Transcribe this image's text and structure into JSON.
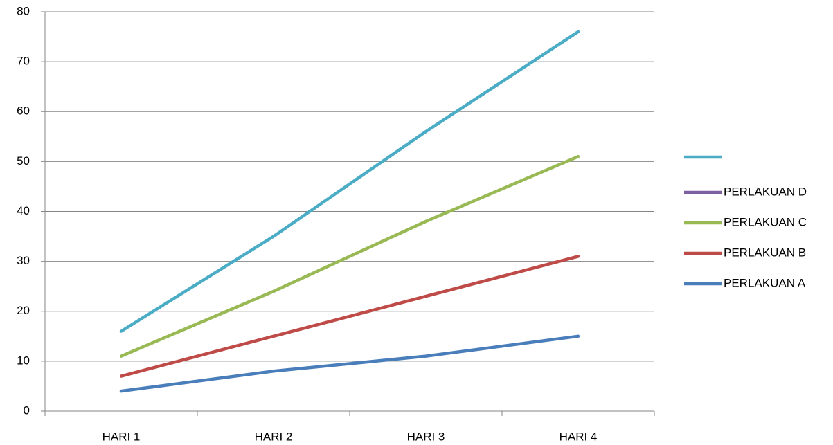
{
  "chart_data": {
    "type": "line",
    "categories": [
      "HARI 1",
      "HARI 2",
      "HARI 3",
      "HARI 4"
    ],
    "series": [
      {
        "name": "PERLAKUAN A",
        "color": "#4a7ebb",
        "values": [
          4,
          8,
          11,
          15
        ]
      },
      {
        "name": "PERLAKUAN B",
        "color": "#be4b48",
        "values": [
          7,
          15,
          23,
          31
        ]
      },
      {
        "name": "PERLAKUAN C",
        "color": "#98b954",
        "values": [
          11,
          24,
          38,
          51
        ]
      },
      {
        "name": "PERLAKUAN D",
        "color": "#7d60a0",
        "values": [
          null,
          null,
          null,
          null
        ]
      },
      {
        "name": null,
        "color": "#4bacc6",
        "values": [
          16,
          35,
          56,
          76
        ]
      }
    ],
    "ylim": [
      0,
      80
    ],
    "yticks": [
      0,
      10,
      20,
      30,
      40,
      50,
      60,
      70,
      80
    ],
    "grid": true,
    "legend": "right"
  }
}
